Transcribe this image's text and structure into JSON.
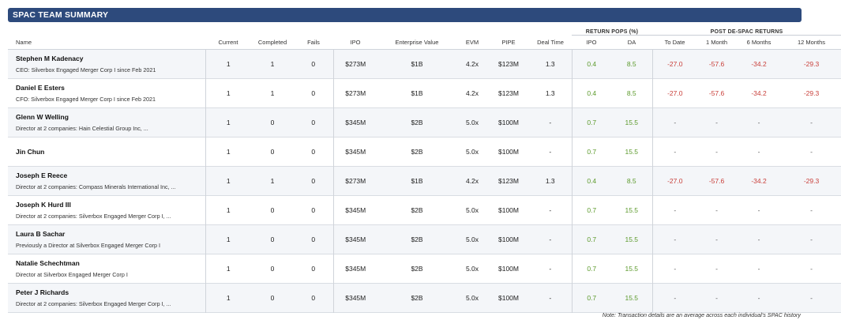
{
  "title": "SPAC TEAM SUMMARY",
  "group_headers": {
    "return_pops": "RETURN POPS (%)",
    "post_despac": "POST DE-SPAC RETURNS"
  },
  "columns": {
    "name": "Name",
    "current": "Current",
    "completed": "Completed",
    "fails": "Fails",
    "ipo": "IPO",
    "ev": "Enterprise Value",
    "evm": "EVM",
    "pipe": "PIPE",
    "deal_time": "Deal Time",
    "pop_ipo": "IPO",
    "pop_da": "DA",
    "to_date": "To Date",
    "m1": "1 Month",
    "m6": "6 Months",
    "m12": "12 Months"
  },
  "rows": [
    {
      "name": "Stephen M Kadenacy",
      "role": "CEO: Silverbox Engaged Merger Corp I since Feb 2021",
      "current": "1",
      "completed": "1",
      "fails": "0",
      "ipo": "$273M",
      "ev": "$1B",
      "evm": "4.2x",
      "pipe": "$123M",
      "deal_time": "1.3",
      "pop_ipo": "0.4",
      "pop_da": "8.5",
      "to_date": "-27.0",
      "m1": "-57.6",
      "m6": "-34.2",
      "m12": "-29.3"
    },
    {
      "name": "Daniel E Esters",
      "role": "CFO: Silverbox Engaged Merger Corp I since Feb 2021",
      "current": "1",
      "completed": "1",
      "fails": "0",
      "ipo": "$273M",
      "ev": "$1B",
      "evm": "4.2x",
      "pipe": "$123M",
      "deal_time": "1.3",
      "pop_ipo": "0.4",
      "pop_da": "8.5",
      "to_date": "-27.0",
      "m1": "-57.6",
      "m6": "-34.2",
      "m12": "-29.3"
    },
    {
      "name": "Glenn W Welling",
      "role": "Director at 2 companies: Hain Celestial Group Inc, ...",
      "current": "1",
      "completed": "0",
      "fails": "0",
      "ipo": "$345M",
      "ev": "$2B",
      "evm": "5.0x",
      "pipe": "$100M",
      "deal_time": "-",
      "pop_ipo": "0.7",
      "pop_da": "15.5",
      "to_date": "-",
      "m1": "-",
      "m6": "-",
      "m12": "-"
    },
    {
      "name": "Jin Chun",
      "role": "",
      "current": "1",
      "completed": "0",
      "fails": "0",
      "ipo": "$345M",
      "ev": "$2B",
      "evm": "5.0x",
      "pipe": "$100M",
      "deal_time": "-",
      "pop_ipo": "0.7",
      "pop_da": "15.5",
      "to_date": "-",
      "m1": "-",
      "m6": "-",
      "m12": "-"
    },
    {
      "name": "Joseph E Reece",
      "role": "Director at 2 companies: Compass Minerals International Inc, ...",
      "current": "1",
      "completed": "1",
      "fails": "0",
      "ipo": "$273M",
      "ev": "$1B",
      "evm": "4.2x",
      "pipe": "$123M",
      "deal_time": "1.3",
      "pop_ipo": "0.4",
      "pop_da": "8.5",
      "to_date": "-27.0",
      "m1": "-57.6",
      "m6": "-34.2",
      "m12": "-29.3"
    },
    {
      "name": "Joseph K Hurd III",
      "role": "Director at 2 companies: Silverbox Engaged Merger Corp I, ...",
      "current": "1",
      "completed": "0",
      "fails": "0",
      "ipo": "$345M",
      "ev": "$2B",
      "evm": "5.0x",
      "pipe": "$100M",
      "deal_time": "-",
      "pop_ipo": "0.7",
      "pop_da": "15.5",
      "to_date": "-",
      "m1": "-",
      "m6": "-",
      "m12": "-"
    },
    {
      "name": "Laura B Sachar",
      "role": "Previously a Director at Silverbox Engaged Merger Corp I",
      "current": "1",
      "completed": "0",
      "fails": "0",
      "ipo": "$345M",
      "ev": "$2B",
      "evm": "5.0x",
      "pipe": "$100M",
      "deal_time": "-",
      "pop_ipo": "0.7",
      "pop_da": "15.5",
      "to_date": "-",
      "m1": "-",
      "m6": "-",
      "m12": "-"
    },
    {
      "name": "Natalie Schechtman",
      "role": "Director at Silverbox Engaged Merger Corp I",
      "current": "1",
      "completed": "0",
      "fails": "0",
      "ipo": "$345M",
      "ev": "$2B",
      "evm": "5.0x",
      "pipe": "$100M",
      "deal_time": "-",
      "pop_ipo": "0.7",
      "pop_da": "15.5",
      "to_date": "-",
      "m1": "-",
      "m6": "-",
      "m12": "-"
    },
    {
      "name": "Peter J Richards",
      "role": "Director at 2 companies: Silverbox Engaged Merger Corp I, ...",
      "current": "1",
      "completed": "0",
      "fails": "0",
      "ipo": "$345M",
      "ev": "$2B",
      "evm": "5.0x",
      "pipe": "$100M",
      "deal_time": "-",
      "pop_ipo": "0.7",
      "pop_da": "15.5",
      "to_date": "-",
      "m1": "-",
      "m6": "-",
      "m12": "-"
    }
  ],
  "footnote": "Note: Transaction details are an average across each individual's SPAC history",
  "colors": {
    "banner": "#2d4a7c",
    "positive": "#5c9a2c",
    "negative": "#c9403b"
  }
}
